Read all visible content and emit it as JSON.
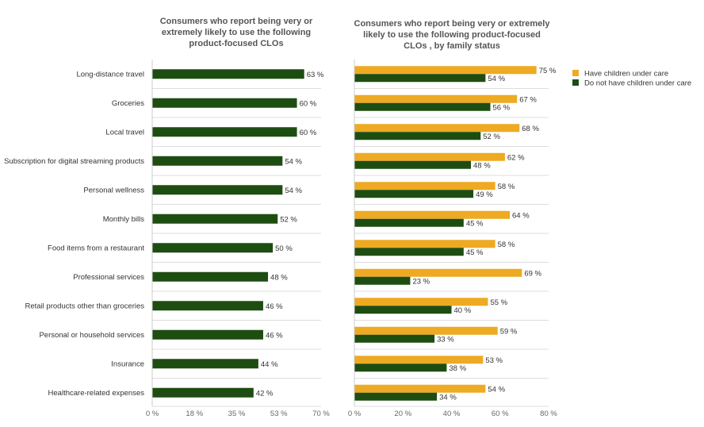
{
  "chart_data": [
    {
      "type": "bar",
      "orientation": "horizontal",
      "title": [
        "Consumers who report being very or",
        "extremely likely to use the following",
        "product-focused CLOs"
      ],
      "categories": [
        "Long-distance travel",
        "Groceries",
        "Local travel",
        "Subscription for digital streaming products",
        "Personal wellness",
        "Monthly bills",
        "Food items from a restaurant",
        "Professional services",
        "Retail products other than groceries",
        "Personal or household services",
        "Insurance",
        "Healthcare-related expenses"
      ],
      "series": [
        {
          "values": [
            63,
            60,
            60,
            54,
            54,
            52,
            50,
            48,
            46,
            46,
            44,
            42
          ],
          "color": "#1e4d12"
        }
      ],
      "xlim": [
        0,
        70
      ],
      "xticks": [
        "0 %",
        "18 %",
        "35 %",
        "53 %",
        "70 %"
      ],
      "xtick_values": [
        0,
        17.5,
        35,
        52.5,
        70
      ],
      "value_suffix": " %",
      "grid": "horizontal row separators"
    },
    {
      "type": "bar",
      "orientation": "horizontal",
      "title": [
        "Consumers who report being very or extremely",
        "likely to use the following product-focused",
        "CLOs , by family status"
      ],
      "categories": [
        "Long-distance travel",
        "Groceries",
        "Local travel",
        "Subscription for digital streaming products",
        "Personal wellness",
        "Monthly bills",
        "Food items from a restaurant",
        "Professional services",
        "Retail products other than groceries",
        "Personal or household services",
        "Insurance",
        "Healthcare-related expenses"
      ],
      "series": [
        {
          "name": "Have children under care",
          "values": [
            75,
            67,
            68,
            62,
            58,
            64,
            58,
            69,
            55,
            59,
            53,
            54
          ],
          "color": "#eeaa22"
        },
        {
          "name": "Do not have children under care",
          "values": [
            54,
            56,
            52,
            48,
            49,
            45,
            45,
            23,
            40,
            33,
            38,
            34
          ],
          "color": "#1e4d12"
        }
      ],
      "xlim": [
        0,
        80
      ],
      "xticks": [
        "0 %",
        "20 %",
        "40 %",
        "60 %",
        "80 %"
      ],
      "xtick_values": [
        0,
        20,
        40,
        60,
        80
      ],
      "value_suffix": " %",
      "legend": "top-right"
    }
  ]
}
